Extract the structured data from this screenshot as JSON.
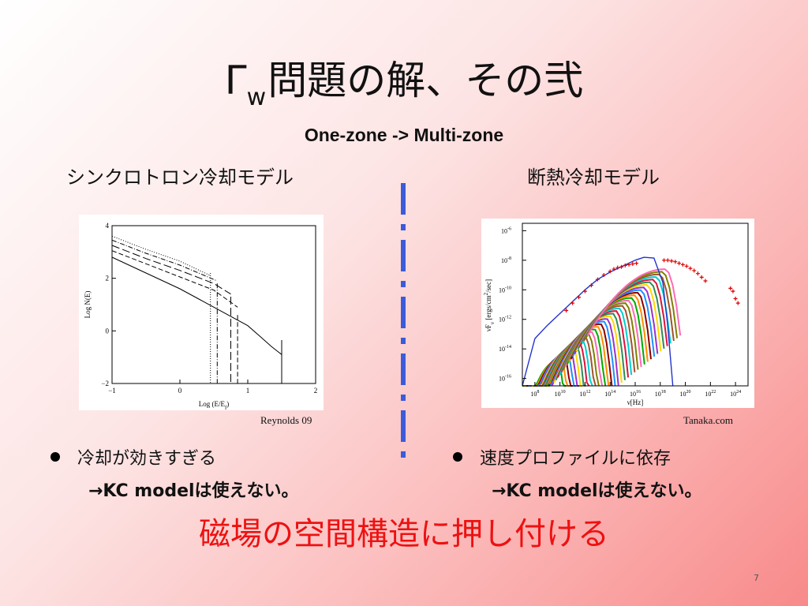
{
  "slide": {
    "title_main": "Γ",
    "title_sub": "w",
    "title_rest": "問題の解、その弐",
    "subtitle": "One-zone -> Multi-zone",
    "left_heading": "シンクロトロン冷却モデル",
    "right_heading": "断熱冷却モデル",
    "reynolds_credit": "Reynolds 09",
    "tanaka_credit": "Tanaka.com",
    "left_bullet": "冷却が効きすぎる",
    "left_note": "→KC modelは使えない。",
    "right_bullet": "速度プロファイルに依存",
    "right_note": "→KC modelは使えない。",
    "conclusion": "磁場の空間構造に押し付ける",
    "page_number": "7",
    "divider_color": "#3b5bdb",
    "conclusion_color": "#ee1111"
  },
  "chart_data": [
    {
      "type": "line",
      "xlabel": "Log  (E/E",
      "xlabel_sub": "f",
      "xlabel_end": ")",
      "ylabel": "Log N(E)",
      "xlim": [
        -1,
        2
      ],
      "ylim": [
        -2,
        4
      ],
      "x_ticks": [
        -1,
        0,
        1,
        2
      ],
      "y_ticks": [
        -2,
        0,
        2,
        4
      ],
      "x_tick_labels": [
        "−1",
        "0",
        "1",
        "2"
      ],
      "y_tick_labels": [
        "−2",
        "0",
        "2",
        "4"
      ],
      "series": [
        {
          "style": "solid",
          "x": [
            -1,
            0,
            0.5,
            1.0,
            1.2,
            1.35,
            1.45,
            1.5
          ],
          "y": [
            2.8,
            1.6,
            0.9,
            0.2,
            -0.25,
            -0.6,
            -0.8,
            -0.9
          ],
          "cutoff_x": 1.5,
          "cutoff_top": -0.35
        },
        {
          "style": "dashed",
          "x": [
            -1,
            -0.5,
            0,
            0.5,
            0.85
          ],
          "y": [
            3.05,
            2.55,
            2.05,
            1.55,
            0.9
          ],
          "cutoff_x": 0.85,
          "cutoff_top": 0.6
        },
        {
          "style": "longdash",
          "x": [
            -1,
            -0.5,
            0,
            0.5,
            0.75
          ],
          "y": [
            3.25,
            2.75,
            2.3,
            1.8,
            1.4
          ],
          "cutoff_x": 0.75,
          "cutoff_top": 1.3
        },
        {
          "style": "dashdot",
          "x": [
            -1,
            -0.5,
            0,
            0.55
          ],
          "y": [
            3.45,
            2.95,
            2.5,
            1.9
          ],
          "cutoff_x": 0.55,
          "cutoff_top": 1.8
        },
        {
          "style": "dotted",
          "x": [
            -1,
            -0.5,
            0,
            0.45
          ],
          "y": [
            3.6,
            3.1,
            2.65,
            2.1
          ],
          "cutoff_x": 0.45,
          "cutoff_top": 2.2
        }
      ]
    },
    {
      "type": "line",
      "xlabel": "ν[Hz]",
      "ylabel": "νF",
      "ylabel_sub": "ν",
      "ylabel_rest": " [ergs/cm",
      "ylabel_sup": "2",
      "ylabel_end": "/sec]",
      "log_scale": true,
      "xlim": [
        7,
        25
      ],
      "ylim": [
        -16.5,
        -5.5
      ],
      "x_ticks": [
        8,
        10,
        12,
        14,
        16,
        18,
        20,
        22,
        24
      ],
      "y_ticks": [
        -16,
        -14,
        -12,
        -10,
        -8,
        -6
      ],
      "x_tick_base": "10",
      "y_tick_base": "10",
      "envelope": {
        "x": [
          7,
          8,
          9,
          10,
          11,
          12,
          13,
          14,
          15,
          16,
          16.7,
          17.5,
          18.2,
          18.6,
          19.0
        ],
        "y": [
          -16.5,
          -13.3,
          -12.4,
          -11.6,
          -10.8,
          -10.0,
          -9.3,
          -8.8,
          -8.4,
          -8.0,
          -7.8,
          -7.85,
          -9.5,
          -12.5,
          -16.5
        ]
      },
      "component_count": 36,
      "component_colors": [
        "#00aa00",
        "#ff8c00",
        "#8b0000",
        "#1e90ff",
        "#9932cc",
        "#ffd700",
        "#2e8b57",
        "#dc143c",
        "#00ced1",
        "#a0522d",
        "#808000",
        "#ff69b4"
      ],
      "observed_data": {
        "color": "#dd0000",
        "radio_optical_x": [
          10.5,
          11.0,
          11.5,
          12.0,
          12.5,
          13.0,
          13.5,
          14.0,
          14.3,
          14.6,
          14.9,
          15.2,
          15.5,
          15.8,
          16.1
        ],
        "radio_optical_y": [
          -11.4,
          -10.9,
          -10.5,
          -10.1,
          -9.7,
          -9.3,
          -9.0,
          -8.75,
          -8.6,
          -8.5,
          -8.45,
          -8.35,
          -8.3,
          -8.25,
          -8.2
        ],
        "xray_x": [
          18.3,
          18.6,
          18.9,
          19.2,
          19.5,
          19.8,
          20.1,
          20.4,
          20.7,
          21.0,
          21.3,
          21.6
        ],
        "xray_y": [
          -8.0,
          -8.0,
          -8.05,
          -8.1,
          -8.2,
          -8.3,
          -8.4,
          -8.55,
          -8.7,
          -8.9,
          -9.15,
          -9.4
        ],
        "gamma_x": [
          23.6,
          23.8,
          24.0,
          24.2
        ],
        "gamma_y": [
          -9.9,
          -10.1,
          -10.6,
          -10.9
        ]
      }
    }
  ]
}
